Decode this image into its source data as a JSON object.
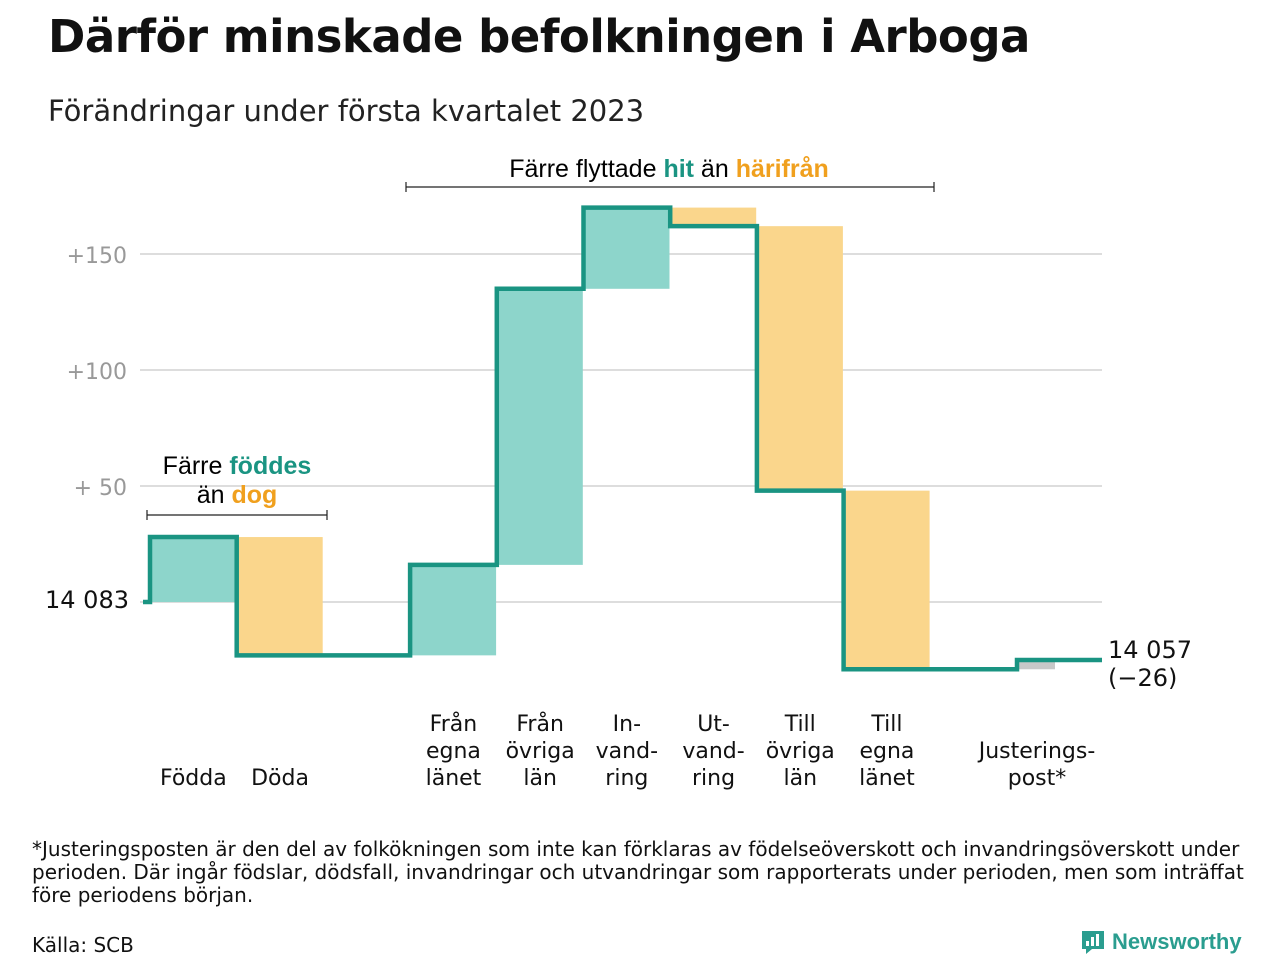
{
  "title": "Därför minskade befolkningen i Arboga",
  "subtitle": "Förändringar under första kvartalet 2023",
  "colors": {
    "increase": "#8dd5cb",
    "decrease": "#fad68c",
    "adjustment": "#c8c8c8",
    "line": "#1a9482",
    "teal_text": "#1a9482",
    "orange_text": "#f0a01e",
    "axis_text": "#999999",
    "grid": "#dddddd"
  },
  "annotations": {
    "births": {
      "line1_prefix": "Färre ",
      "line1_highlight": "föddes",
      "line2_prefix": "än ",
      "line2_highlight": "dog"
    },
    "migration": {
      "prefix": "Färre flyttade ",
      "highlight1": "hit",
      "middle": " än ",
      "highlight2": "härifrån"
    }
  },
  "footnote": "*Justeringsposten är den del av folkökningen som inte kan förklaras av födelseöverskott och invandringsöverskott under perioden. Där ingår födslar, dödsfall, invandringar och utvandringar som rapporterats under perioden, men som inträffat före periodens början.",
  "source": "Källa: SCB",
  "logo_text": "Newsworthy",
  "logo_icon": "newsworthy-chart-icon",
  "chart_data": {
    "type": "waterfall",
    "start_value": 14083,
    "start_label": "14 083",
    "end_label": "14 057",
    "end_change_label": "(−26)",
    "y_tick_labels": [
      "+150",
      "+100",
      "+ 50"
    ],
    "y_ticks": [
      150,
      100,
      50
    ],
    "ylim": [
      -40,
      175
    ],
    "steps": [
      {
        "label": [
          "Födda"
        ],
        "change": 28,
        "kind": "increase"
      },
      {
        "label": [
          "Döda"
        ],
        "change": -51,
        "kind": "decrease"
      },
      {
        "label": [],
        "change": 0,
        "kind": "gap"
      },
      {
        "label": [
          "Från",
          "egna",
          "länet"
        ],
        "change": 39,
        "kind": "increase"
      },
      {
        "label": [
          "Från",
          "övriga",
          "län"
        ],
        "change": 119,
        "kind": "increase"
      },
      {
        "label": [
          "In-",
          "vand-",
          "ring"
        ],
        "change": 35,
        "kind": "increase"
      },
      {
        "label": [
          "Ut-",
          "vand-",
          "ring"
        ],
        "change": -8,
        "kind": "decrease"
      },
      {
        "label": [
          "Till",
          "övriga",
          "län"
        ],
        "change": -114,
        "kind": "decrease"
      },
      {
        "label": [
          "Till",
          "egna",
          "länet"
        ],
        "change": -77,
        "kind": "decrease"
      },
      {
        "label": [],
        "change": 0,
        "kind": "gap"
      },
      {
        "label": [
          "Justerings-",
          "post*"
        ],
        "change": 4,
        "kind": "adjustment"
      }
    ],
    "grid": true,
    "legend": "none"
  }
}
